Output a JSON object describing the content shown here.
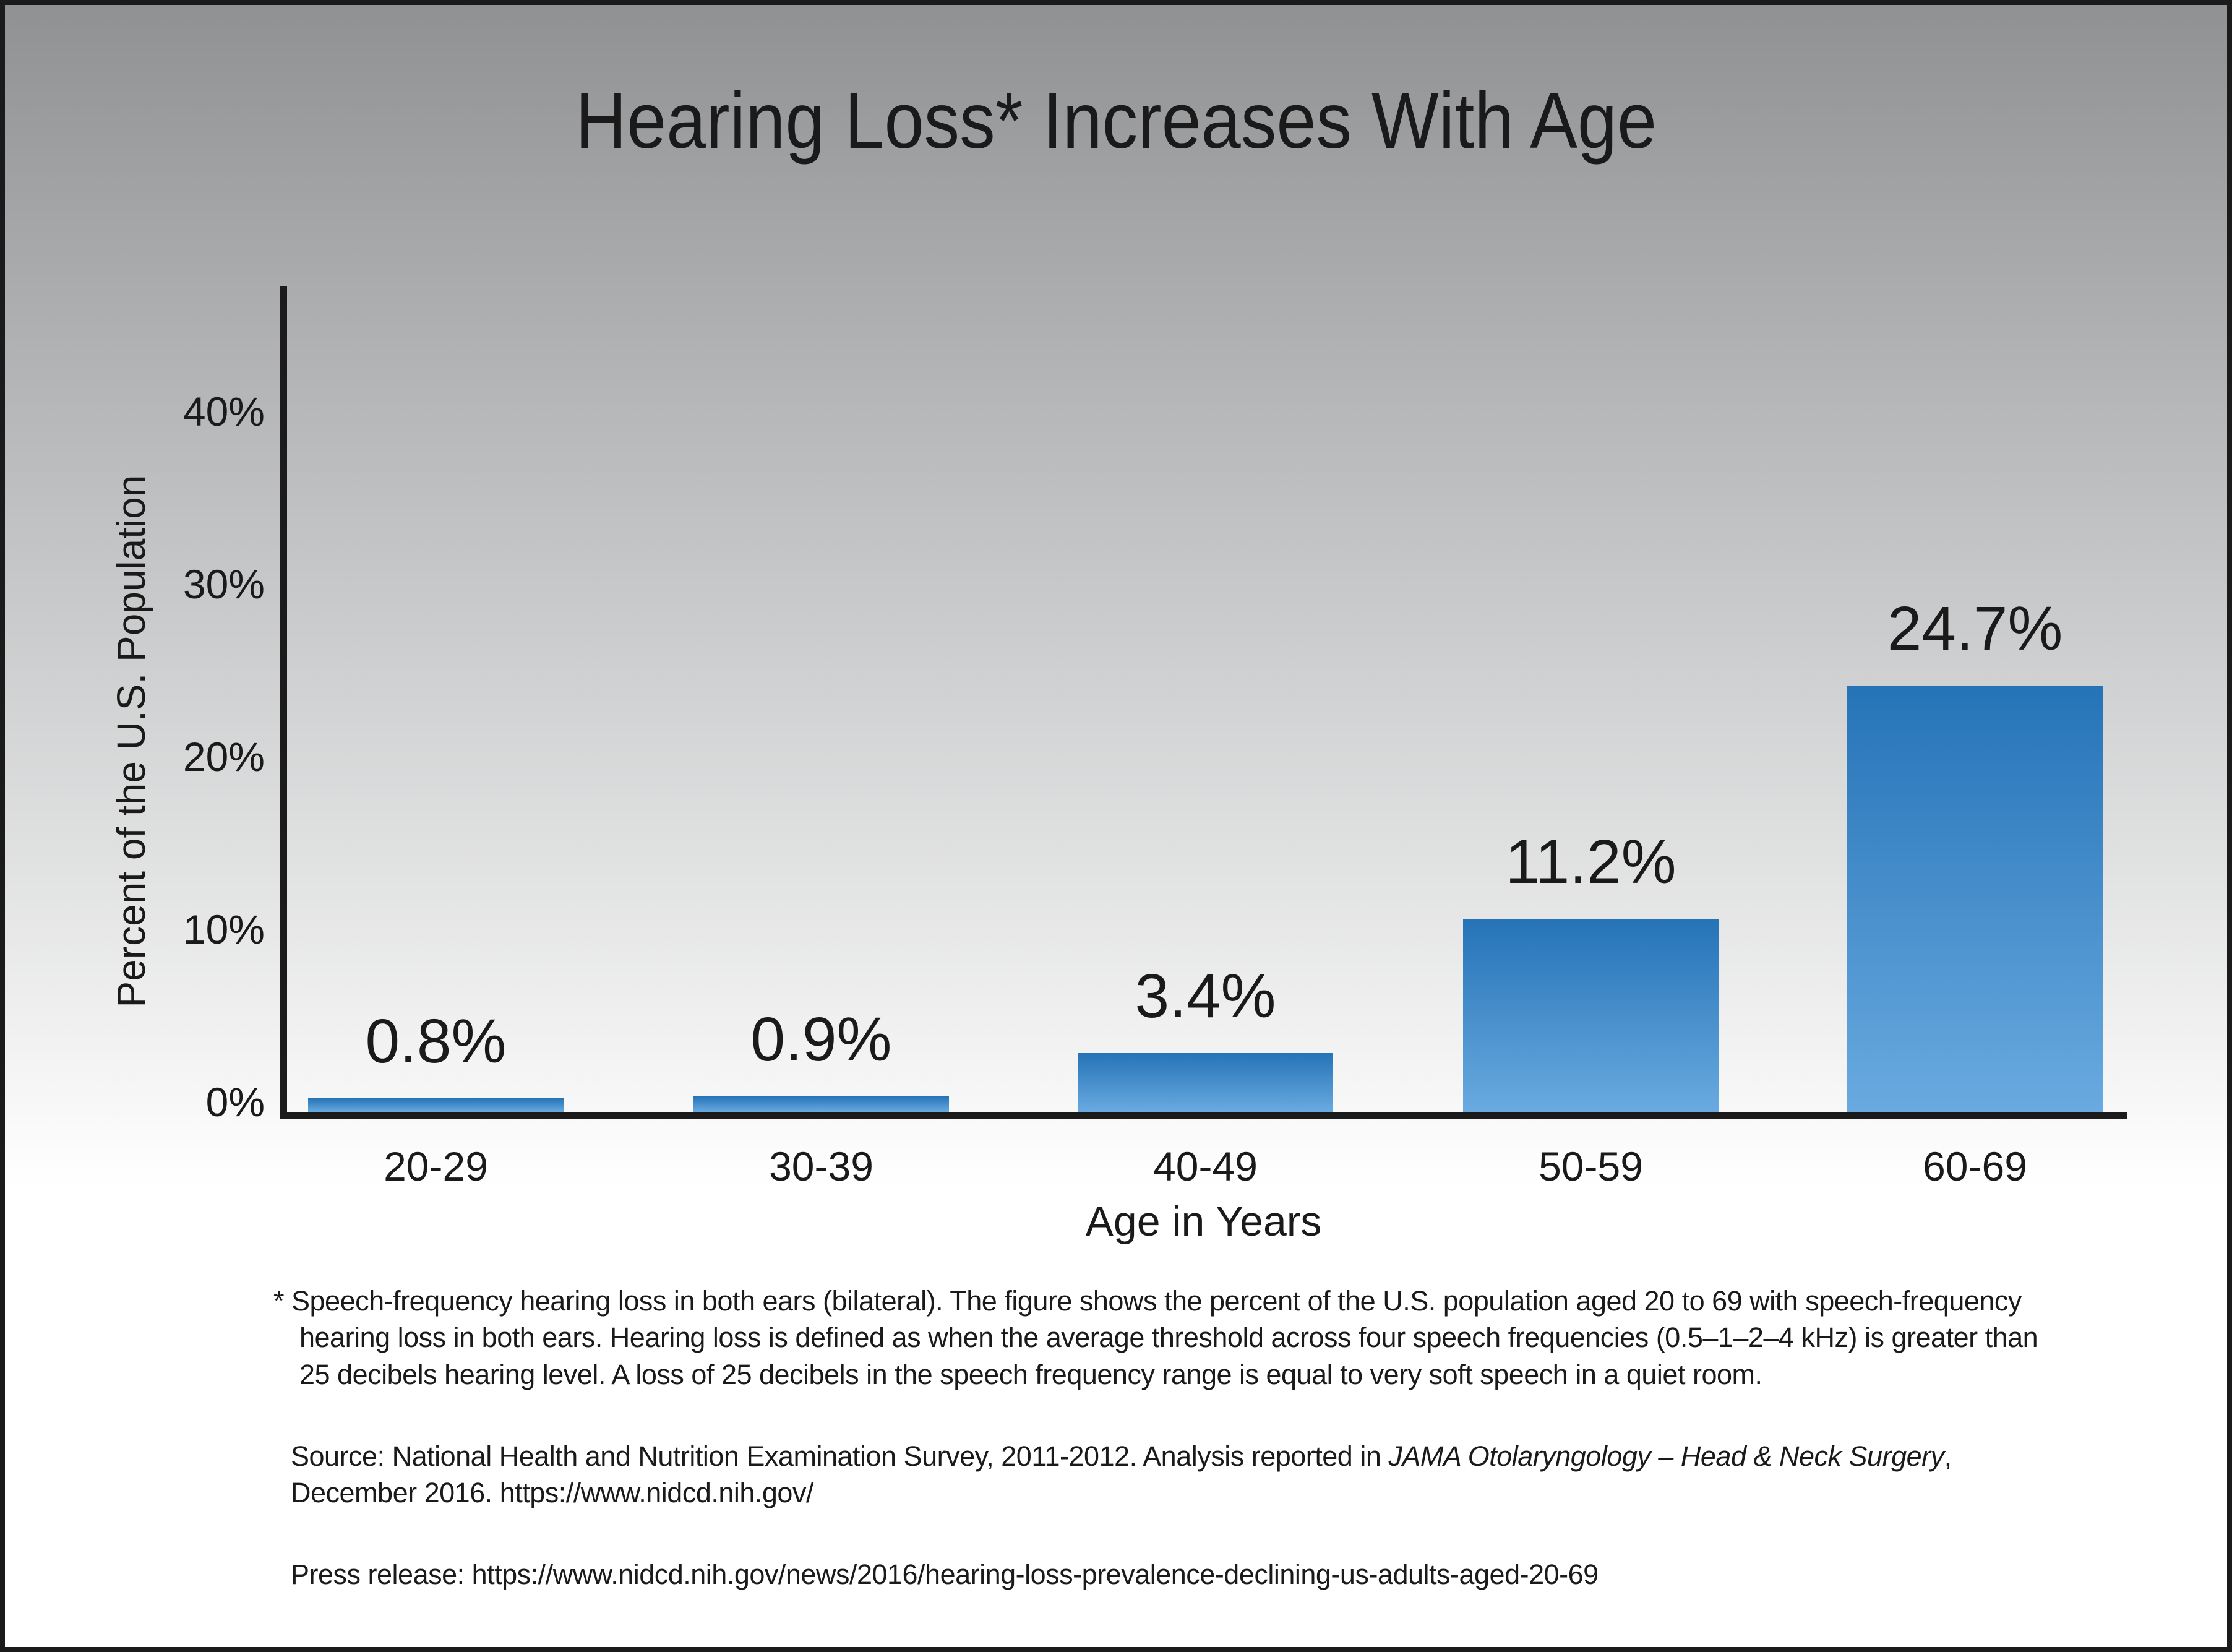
{
  "title": "Hearing Loss* Increases With Age",
  "chart_data": {
    "type": "bar",
    "title": "Hearing Loss* Increases With Age",
    "categories": [
      "20-29",
      "30-39",
      "40-49",
      "50-59",
      "60-69"
    ],
    "values": [
      0.8,
      0.9,
      3.4,
      11.2,
      24.7
    ],
    "value_labels": [
      "0.8%",
      "0.9%",
      "3.4%",
      "11.2%",
      "24.7%"
    ],
    "xlabel": "Age in Years",
    "ylabel": "Percent of the U.S. Population",
    "ylim": [
      0,
      47
    ],
    "yticks": [
      0,
      10,
      20,
      30,
      40
    ],
    "ytick_labels": [
      "0%",
      "10%",
      "20%",
      "30%",
      "40%"
    ],
    "grid": false,
    "legend": "none",
    "bar_gradient_top": "#2573b7",
    "bar_gradient_bottom": "#69aae0"
  },
  "notes": {
    "footnote_lines": [
      "* Speech-frequency hearing loss in both ears (bilateral). The figure shows the percent of the U.S. population aged 20 to 69 with speech-frequency",
      "hearing loss in both ears. Hearing loss is defined as when the average threshold across four speech frequencies (0.5–1–2–4 kHz) is greater than",
      "25 decibels hearing level. A loss of 25 decibels in the speech frequency range is equal to very soft speech in a quiet room."
    ],
    "source_prefix": "Source: National Health and Nutrition Examination Survey, 2011-2012. Analysis reported in ",
    "source_italic": "JAMA Otolaryngology – Head & Neck Surgery",
    "source_suffix": ",",
    "source_line2": "December 2016. https://www.nidcd.nih.gov/",
    "press_release": "Press release: https://www.nidcd.nih.gov/news/2016/hearing-loss-prevalence-declining-us-adults-aged-20-69"
  },
  "colors": {
    "background_top": "#909193",
    "background_bottom": "#ffffff",
    "bar_top": "#2573b7",
    "bar_bottom": "#69aae0",
    "axis": "#1b1b1b",
    "text": "#1a1a1a"
  }
}
